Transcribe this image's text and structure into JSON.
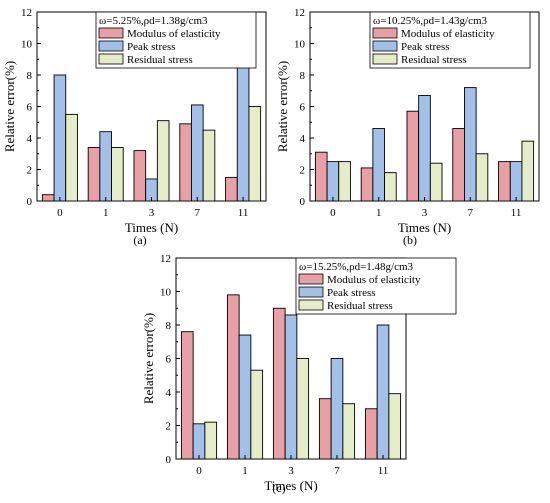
{
  "colors": {
    "modulus": "#e8a0a4",
    "peak": "#a3c1e8",
    "residual": "#e4ecc8",
    "stroke": "#000000"
  },
  "chart_data": [
    {
      "type": "bar",
      "panel_label": "(a)",
      "legend_title": "ω=5.25%,ρd=1.38g/cm3",
      "categories": [
        "0",
        "1",
        "3",
        "7",
        "11"
      ],
      "series": [
        {
          "name": "Modulus of elasticity",
          "values": [
            0.4,
            3.4,
            3.2,
            4.9,
            1.5
          ]
        },
        {
          "name": "Peak stress",
          "values": [
            8.0,
            4.4,
            1.4,
            6.1,
            9.9
          ]
        },
        {
          "name": "Residual stress",
          "values": [
            5.5,
            3.4,
            5.1,
            4.5,
            6.0
          ]
        }
      ],
      "xlabel": "Times (N)",
      "ylabel": "Relative error(%)",
      "ylim": [
        0,
        12
      ],
      "yticks": [
        0,
        2,
        4,
        6,
        8,
        10,
        12
      ],
      "legend_position": "top"
    },
    {
      "type": "bar",
      "panel_label": "(b)",
      "legend_title": "ω=10.25%,ρd=1.43g/cm3",
      "categories": [
        "0",
        "1",
        "3",
        "7",
        "11"
      ],
      "series": [
        {
          "name": "Modulus of elasticity",
          "values": [
            3.1,
            2.1,
            5.7,
            4.6,
            2.5
          ]
        },
        {
          "name": "Peak stress",
          "values": [
            2.5,
            4.6,
            6.7,
            7.2,
            2.5
          ]
        },
        {
          "name": "Residual stress",
          "values": [
            2.5,
            1.8,
            2.4,
            3.0,
            3.8
          ]
        }
      ],
      "xlabel": "Times (N)",
      "ylabel": "Relative error(%)",
      "ylim": [
        0,
        12
      ],
      "yticks": [
        0,
        2,
        4,
        6,
        8,
        10,
        12
      ],
      "legend_position": "top"
    },
    {
      "type": "bar",
      "panel_label": "(c)",
      "legend_title": "ω=15.25%,ρd=1.48g/cm3",
      "categories": [
        "0",
        "1",
        "3",
        "7",
        "11"
      ],
      "series": [
        {
          "name": "Modulus of elasticity",
          "values": [
            7.6,
            9.8,
            9.0,
            3.6,
            3.0
          ]
        },
        {
          "name": "Peak stress",
          "values": [
            2.1,
            7.4,
            8.6,
            6.0,
            8.0
          ]
        },
        {
          "name": "Residual stress",
          "values": [
            2.2,
            5.3,
            6.0,
            3.3,
            3.9
          ]
        }
      ],
      "xlabel": "Times (N)",
      "ylabel": "Relative error(%)",
      "ylim": [
        0,
        12
      ],
      "yticks": [
        0,
        2,
        4,
        6,
        8,
        10,
        12
      ],
      "legend_position": "top"
    }
  ]
}
